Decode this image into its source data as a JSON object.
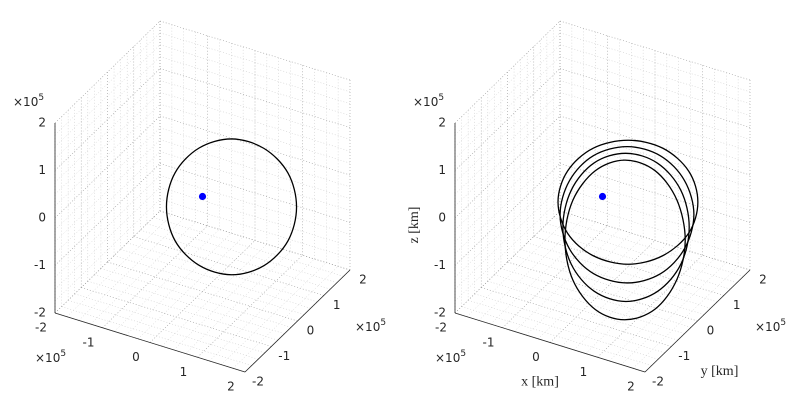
{
  "chart_data": [
    {
      "type": "line3d",
      "xlim": [
        -2,
        2
      ],
      "ylim": [
        -2,
        2
      ],
      "zlim": [
        -2,
        2
      ],
      "xticks": [
        -2,
        -1,
        0,
        1,
        2
      ],
      "yticks": [
        -2,
        -1,
        0,
        1,
        2
      ],
      "zticks": [
        -2,
        -1,
        0,
        1,
        2
      ],
      "x_multiplier": {
        "base": "×10",
        "exponent": "5"
      },
      "y_multiplier": {
        "base": "×10",
        "exponent": "5"
      },
      "z_multiplier": {
        "base": "×10",
        "exponent": "5"
      },
      "grid": true,
      "minor_grid": true,
      "series": [
        {
          "color": "#000000",
          "x": [
            2.14,
            1.92,
            1.32,
            0.5,
            -0.32,
            -0.92,
            -1.14,
            -0.92,
            -0.32,
            0.5,
            1.32,
            1.92
          ],
          "y": [
            -0.29,
            -0.22,
            -0.05,
            0.2,
            0.45,
            0.62,
            0.69,
            0.62,
            0.45,
            0.2,
            -0.05,
            -0.22
          ],
          "z": [
            0.6,
            1.21,
            1.45,
            1.26,
            0.68,
            -0.12,
            -0.94,
            -1.55,
            -1.79,
            -1.6,
            -1.02,
            -0.22
          ]
        }
      ],
      "point": {
        "color": "#0000ff",
        "x": 0,
        "y": 0,
        "z": 0
      }
    },
    {
      "type": "line3d",
      "xlabel": "x [km]",
      "ylabel": "y [km]",
      "zlabel": "z [km]",
      "xlim": [
        -2,
        2
      ],
      "ylim": [
        -2,
        2
      ],
      "zlim": [
        -2,
        2
      ],
      "xticks": [
        -2,
        -1,
        0,
        1,
        2
      ],
      "yticks": [
        -2,
        -1,
        0,
        1,
        2
      ],
      "zticks": [
        -2,
        -1,
        0,
        1,
        2
      ],
      "x_multiplier": {
        "base": "×10",
        "exponent": "5"
      },
      "y_multiplier": {
        "base": "×10",
        "exponent": "5"
      },
      "z_multiplier": {
        "base": "×10",
        "exponent": "5"
      },
      "grid": true,
      "minor_grid": true,
      "series": [
        {
          "color": "#000000",
          "x": [
            2.19,
            1.96,
            1.31,
            0.43,
            -0.46,
            -1.1,
            -1.34,
            -1.1,
            -0.46,
            0.43,
            1.31,
            1.96
          ],
          "y": [
            -0.33,
            -0.26,
            -0.07,
            0.2,
            0.47,
            0.66,
            0.73,
            0.66,
            0.47,
            0.2,
            -0.07,
            -0.26
          ],
          "z": [
            0.74,
            1.28,
            1.46,
            1.21,
            0.62,
            -0.16,
            -0.92,
            -1.47,
            -1.64,
            -1.4,
            -0.8,
            -0.02
          ]
        },
        {
          "color": "#000000",
          "x": [
            2.09,
            1.86,
            1.25,
            0.41,
            -0.44,
            -1.05,
            -1.28,
            -1.05,
            -0.44,
            0.41,
            1.25,
            1.86
          ],
          "y": [
            -0.3,
            -0.24,
            -0.05,
            0.2,
            0.45,
            0.64,
            0.7,
            0.64,
            0.45,
            0.2,
            -0.05,
            -0.24
          ],
          "z": [
            0.43,
            1.04,
            1.27,
            1.07,
            0.48,
            -0.34,
            -1.16,
            -1.77,
            -2.0,
            -1.8,
            -1.21,
            -0.39
          ]
        },
        {
          "color": "#000000",
          "x": [
            1.98,
            1.77,
            1.18,
            0.38,
            -0.42,
            -1.0,
            -1.21,
            -1.0,
            -0.42,
            0.38,
            1.18,
            1.77
          ],
          "y": [
            -0.28,
            -0.22,
            -0.04,
            0.2,
            0.44,
            0.62,
            0.68,
            0.62,
            0.44,
            0.2,
            -0.04,
            -0.22
          ],
          "z": [
            0.12,
            0.8,
            1.09,
            0.92,
            0.34,
            -0.51,
            -1.39,
            -2.07,
            -2.36,
            -2.2,
            -1.61,
            -0.76
          ]
        },
        {
          "color": "#000000",
          "x": [
            1.88,
            1.67,
            1.12,
            0.36,
            -0.39,
            -0.95,
            -1.15,
            -0.95,
            -0.39,
            0.36,
            1.12,
            1.67
          ],
          "y": [
            -0.25,
            -0.19,
            -0.03,
            0.2,
            0.43,
            0.59,
            0.65,
            0.59,
            0.43,
            0.2,
            -0.03,
            -0.19
          ],
          "z": [
            -0.2,
            0.55,
            0.91,
            0.77,
            0.19,
            -0.69,
            -1.62,
            -2.37,
            -2.73,
            -2.59,
            -2.01,
            -1.13
          ]
        }
      ],
      "point": {
        "color": "#0000ff",
        "x": 0,
        "y": 0,
        "z": 0
      }
    }
  ]
}
